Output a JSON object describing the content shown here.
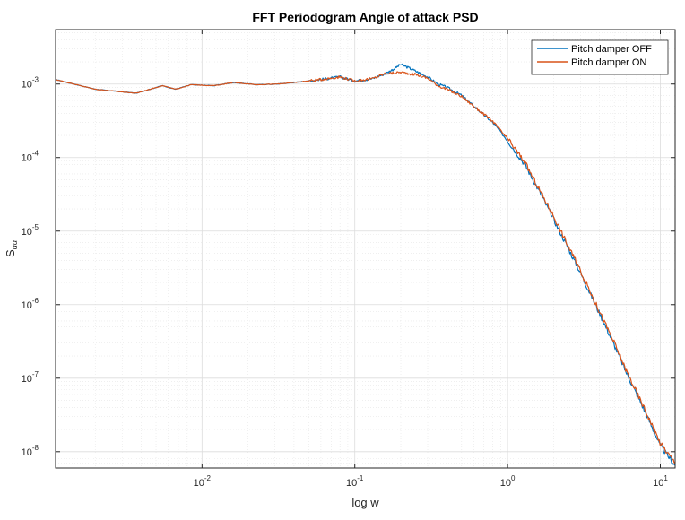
{
  "chart_data": {
    "type": "line",
    "title": "FFT Periodogram Angle of attack PSD",
    "xlabel": "log w",
    "ylabel": "S",
    "ylabel_subscript": "αα",
    "xscale": "log",
    "yscale": "log",
    "xlim": [
      0.0011,
      12.5
    ],
    "ylim": [
      6e-09,
      0.0055
    ],
    "grid": true,
    "minor_grid": true,
    "legend_position": "top-right",
    "x_ticks": [
      {
        "value": 0.01,
        "base": "10",
        "exp": "-2"
      },
      {
        "value": 0.1,
        "base": "10",
        "exp": "-1"
      },
      {
        "value": 1,
        "base": "10",
        "exp": "0"
      },
      {
        "value": 10,
        "base": "10",
        "exp": "1"
      }
    ],
    "y_ticks": [
      {
        "value": 1e-08,
        "base": "10",
        "exp": "-8"
      },
      {
        "value": 1e-07,
        "base": "10",
        "exp": "-7"
      },
      {
        "value": 1e-06,
        "base": "10",
        "exp": "-6"
      },
      {
        "value": 1e-05,
        "base": "10",
        "exp": "-5"
      },
      {
        "value": 0.0001,
        "base": "10",
        "exp": "-4"
      },
      {
        "value": 0.001,
        "base": "10",
        "exp": "-3"
      }
    ],
    "series": [
      {
        "name": "Pitch damper OFF",
        "color": "#0072BD",
        "x": [
          0.0011,
          0.002,
          0.0037,
          0.0055,
          0.0067,
          0.0085,
          0.012,
          0.016,
          0.023,
          0.031,
          0.04,
          0.06,
          0.08,
          0.1,
          0.13,
          0.16,
          0.18,
          0.2,
          0.22,
          0.25,
          0.3,
          0.35,
          0.4,
          0.5,
          0.6,
          0.8,
          1.0,
          1.3,
          1.6,
          2.0,
          2.5,
          3.0,
          4.0,
          5.0,
          6.0,
          8.0,
          10.0,
          12.5
        ],
        "y": [
          0.00115,
          0.00085,
          0.00075,
          0.00095,
          0.00085,
          0.00098,
          0.00095,
          0.00105,
          0.00098,
          0.001,
          0.00105,
          0.00115,
          0.00125,
          0.0011,
          0.00118,
          0.0014,
          0.0016,
          0.00185,
          0.0017,
          0.0015,
          0.00125,
          0.001,
          0.0009,
          0.0007,
          0.0005,
          0.0003,
          0.00017,
          8e-05,
          3.6e-05,
          1.45e-05,
          5.8e-06,
          2.7e-06,
          7.6e-07,
          2.8e-07,
          1.18e-07,
          3.4e-08,
          1.2e-08,
          6.5e-09
        ]
      },
      {
        "name": "Pitch damper ON",
        "color": "#D95319",
        "x": [
          0.0011,
          0.002,
          0.0037,
          0.0055,
          0.0067,
          0.0085,
          0.012,
          0.016,
          0.023,
          0.031,
          0.04,
          0.06,
          0.08,
          0.1,
          0.13,
          0.16,
          0.18,
          0.2,
          0.22,
          0.25,
          0.3,
          0.35,
          0.4,
          0.5,
          0.6,
          0.8,
          1.0,
          1.3,
          1.6,
          2.0,
          2.5,
          3.0,
          4.0,
          5.0,
          6.0,
          8.0,
          10.0,
          12.5
        ],
        "y": [
          0.00115,
          0.00085,
          0.00075,
          0.00095,
          0.00085,
          0.00098,
          0.00095,
          0.00105,
          0.00098,
          0.001,
          0.00105,
          0.00115,
          0.00125,
          0.0011,
          0.00118,
          0.0014,
          0.0014,
          0.00145,
          0.0014,
          0.00135,
          0.0012,
          0.00095,
          0.00085,
          0.00068,
          0.0005,
          0.00031,
          0.00018,
          8.5e-05,
          3.8e-05,
          1.6e-05,
          6.2e-06,
          2.9e-06,
          8e-07,
          3e-07,
          1.25e-07,
          3.6e-08,
          1.3e-08,
          7e-09
        ]
      }
    ]
  }
}
